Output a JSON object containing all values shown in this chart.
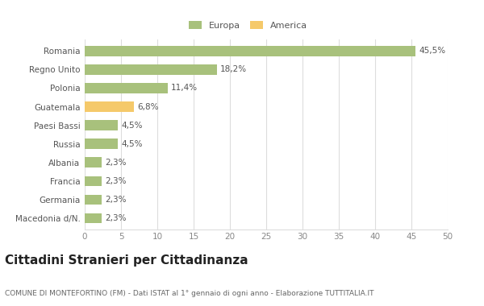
{
  "categories": [
    "Romania",
    "Regno Unito",
    "Polonia",
    "Guatemala",
    "Paesi Bassi",
    "Russia",
    "Albania",
    "Francia",
    "Germania",
    "Macedonia d/N."
  ],
  "values": [
    45.5,
    18.2,
    11.4,
    6.8,
    4.5,
    4.5,
    2.3,
    2.3,
    2.3,
    2.3
  ],
  "labels": [
    "45,5%",
    "18,2%",
    "11,4%",
    "6,8%",
    "4,5%",
    "4,5%",
    "2,3%",
    "2,3%",
    "2,3%",
    "2,3%"
  ],
  "colors": [
    "#a8c17c",
    "#a8c17c",
    "#a8c17c",
    "#f5c96a",
    "#a8c17c",
    "#a8c17c",
    "#a8c17c",
    "#a8c17c",
    "#a8c17c",
    "#a8c17c"
  ],
  "legend_labels": [
    "Europa",
    "America"
  ],
  "legend_colors": [
    "#a8c17c",
    "#f5c96a"
  ],
  "xlim": [
    0,
    50
  ],
  "xticks": [
    0,
    5,
    10,
    15,
    20,
    25,
    30,
    35,
    40,
    45,
    50
  ],
  "title": "Cittadini Stranieri per Cittadinanza",
  "subtitle": "COMUNE DI MONTEFORTINO (FM) - Dati ISTAT al 1° gennaio di ogni anno - Elaborazione TUTTITALIA.IT",
  "bg_color": "#ffffff",
  "grid_color": "#dddddd",
  "bar_height": 0.55,
  "label_fontsize": 7.5,
  "tick_fontsize": 7.5,
  "title_fontsize": 11,
  "subtitle_fontsize": 6.5
}
